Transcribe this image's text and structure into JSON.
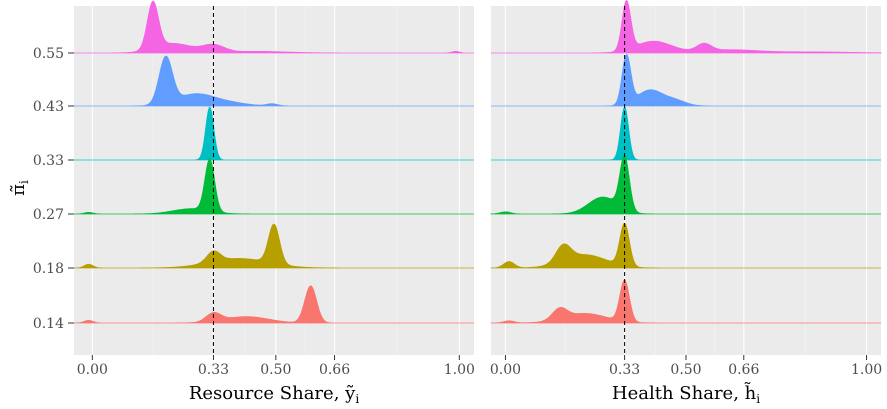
{
  "chart_data": {
    "type": "ridgeline",
    "y_axis_label_symbol": "π̃",
    "y_axis_label_subscript": "i",
    "y_levels": [
      "0.14",
      "0.18",
      "0.27",
      "0.33",
      "0.43",
      "0.55"
    ],
    "reference_line_x": 0.33,
    "grid": true,
    "series_colors": {
      "0.14": "#F8766D",
      "0.18": "#B79F00",
      "0.27": "#00BA38",
      "0.33": "#00BFC4",
      "0.43": "#619CFF",
      "0.55": "#F564E3"
    },
    "panels": [
      {
        "xlabel_main": "Resource Share, ",
        "xlabel_symbol": "ỹ",
        "xlabel_subscript": "i",
        "xlim": [
          -0.05,
          1.04
        ],
        "x_ticks": [
          0.0,
          0.33,
          0.5,
          0.66,
          1.0
        ],
        "x_tick_labels": [
          "0.00",
          "0.33",
          "0.50",
          "0.66",
          "1.00"
        ],
        "series": [
          {
            "level": "0.14",
            "peaks": [
              {
                "center": -0.01,
                "height": 0.05,
                "width": 0.012
              },
              {
                "center": 0.33,
                "height": 0.16,
                "width": 0.02
              },
              {
                "center": 0.42,
                "height": 0.12,
                "width": 0.06
              },
              {
                "center": 0.595,
                "height": 0.7,
                "width": 0.016
              }
            ]
          },
          {
            "level": "0.18",
            "peaks": [
              {
                "center": -0.01,
                "height": 0.07,
                "width": 0.012
              },
              {
                "center": 0.33,
                "height": 0.2,
                "width": 0.018
              },
              {
                "center": 0.4,
                "height": 0.18,
                "width": 0.08
              },
              {
                "center": 0.495,
                "height": 0.74,
                "width": 0.015
              }
            ]
          },
          {
            "level": "0.27",
            "peaks": [
              {
                "center": -0.01,
                "height": 0.03,
                "width": 0.012
              },
              {
                "center": 0.27,
                "height": 0.1,
                "width": 0.05
              },
              {
                "center": 0.32,
                "height": 0.98,
                "width": 0.013
              }
            ]
          },
          {
            "level": "0.33",
            "peaks": [
              {
                "center": 0.32,
                "height": 1.0,
                "width": 0.011
              }
            ]
          },
          {
            "level": "0.43",
            "peaks": [
              {
                "center": 0.2,
                "height": 0.88,
                "width": 0.018
              },
              {
                "center": 0.28,
                "height": 0.22,
                "width": 0.05
              },
              {
                "center": 0.37,
                "height": 0.06,
                "width": 0.05
              },
              {
                "center": 0.49,
                "height": 0.04,
                "width": 0.015
              }
            ]
          },
          {
            "level": "0.55",
            "peaks": [
              {
                "center": 0.165,
                "height": 0.88,
                "width": 0.015
              },
              {
                "center": 0.22,
                "height": 0.18,
                "width": 0.05
              },
              {
                "center": 0.33,
                "height": 0.14,
                "width": 0.03
              },
              {
                "center": 0.45,
                "height": 0.03,
                "width": 0.08
              },
              {
                "center": 0.99,
                "height": 0.03,
                "width": 0.01
              }
            ]
          }
        ]
      },
      {
        "xlabel_main": "Health Share, ",
        "xlabel_symbol": "h̃",
        "xlabel_subscript": "i",
        "xlim": [
          -0.04,
          1.04
        ],
        "x_ticks": [
          0.0,
          0.33,
          0.5,
          0.66,
          1.0
        ],
        "x_tick_labels": [
          "0.00",
          "0.33",
          "0.50",
          "0.66",
          "1.00"
        ],
        "series": [
          {
            "level": "0.14",
            "peaks": [
              {
                "center": 0.01,
                "height": 0.04,
                "width": 0.015
              },
              {
                "center": 0.15,
                "height": 0.2,
                "width": 0.02
              },
              {
                "center": 0.22,
                "height": 0.18,
                "width": 0.06
              },
              {
                "center": 0.33,
                "height": 0.78,
                "width": 0.013
              }
            ]
          },
          {
            "level": "0.18",
            "peaks": [
              {
                "center": 0.01,
                "height": 0.12,
                "width": 0.015
              },
              {
                "center": 0.16,
                "height": 0.3,
                "width": 0.02
              },
              {
                "center": 0.22,
                "height": 0.25,
                "width": 0.06
              },
              {
                "center": 0.33,
                "height": 0.8,
                "width": 0.013
              }
            ]
          },
          {
            "level": "0.27",
            "peaks": [
              {
                "center": 0.0,
                "height": 0.04,
                "width": 0.015
              },
              {
                "center": 0.27,
                "height": 0.32,
                "width": 0.04
              },
              {
                "center": 0.33,
                "height": 1.0,
                "width": 0.013
              }
            ]
          },
          {
            "level": "0.33",
            "peaks": [
              {
                "center": 0.33,
                "height": 1.0,
                "width": 0.011
              }
            ]
          },
          {
            "level": "0.43",
            "peaks": [
              {
                "center": 0.335,
                "height": 0.92,
                "width": 0.012
              },
              {
                "center": 0.4,
                "height": 0.3,
                "width": 0.035
              },
              {
                "center": 0.47,
                "height": 0.1,
                "width": 0.03
              }
            ]
          },
          {
            "level": "0.55",
            "peaks": [
              {
                "center": 0.335,
                "height": 0.92,
                "width": 0.012
              },
              {
                "center": 0.41,
                "height": 0.22,
                "width": 0.05
              },
              {
                "center": 0.55,
                "height": 0.14,
                "width": 0.02
              },
              {
                "center": 0.62,
                "height": 0.06,
                "width": 0.08
              },
              {
                "center": 0.85,
                "height": 0.02,
                "width": 0.1
              }
            ]
          }
        ]
      }
    ]
  }
}
